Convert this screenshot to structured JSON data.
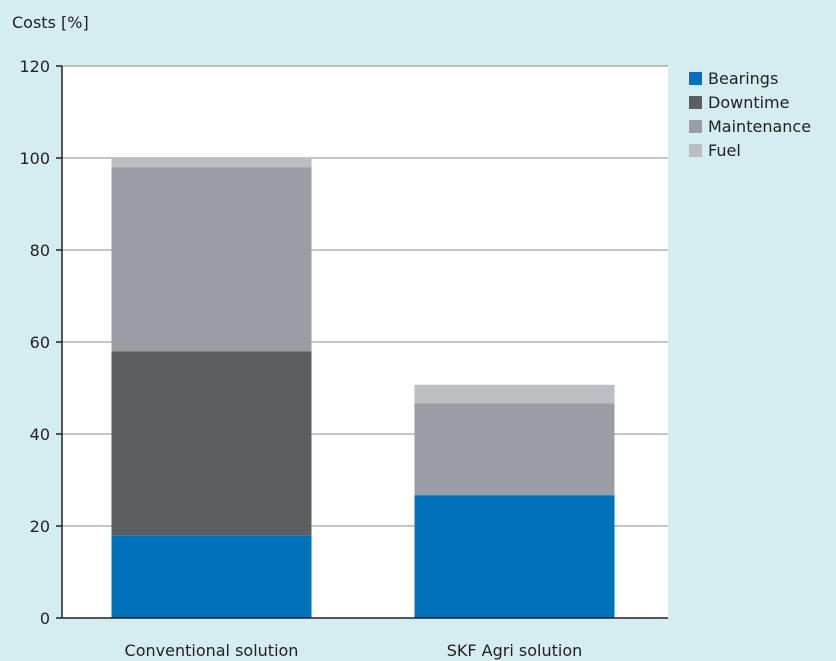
{
  "chart_data": {
    "type": "bar",
    "stacked": true,
    "ylabel": "Costs [%]",
    "xlabel": "",
    "ylim": [
      0,
      120
    ],
    "yticks": [
      0,
      20,
      40,
      60,
      80,
      100,
      120
    ],
    "grid": true,
    "legend_position": "right",
    "categories": [
      "Conventional solution",
      "SKF Agri solution"
    ],
    "series": [
      {
        "name": "Bearings",
        "color": "#0071bb",
        "values": [
          18,
          26.7
        ]
      },
      {
        "name": "Downtime",
        "color": "#5c5e62",
        "values": [
          40,
          0
        ]
      },
      {
        "name": "Maintenance",
        "color": "#9a9da3",
        "values": [
          40,
          20
        ]
      },
      {
        "name": "Fuel",
        "color": "#bcbec4",
        "values": [
          2,
          4
        ]
      }
    ]
  }
}
